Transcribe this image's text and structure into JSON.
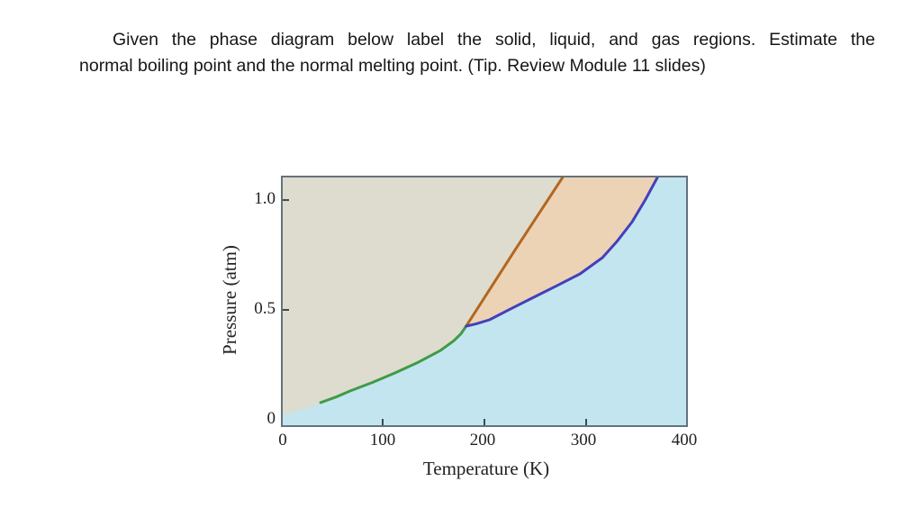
{
  "question": {
    "full_text": "Given the phase diagram below label the solid, liquid, and gas regions. Estimate the normal boiling point and the normal melting point. (Tip. Review Module 11 slides)",
    "lines": [
      "Given the phase diagram below label the solid, liquid, and gas regions. Estimate the",
      "normal boiling point and the normal melting point. (Tip. Review Module 11 slides)"
    ]
  },
  "chart_data": {
    "type": "area",
    "title": "",
    "xlabel": "Temperature (K)",
    "ylabel": "Pressure (atm)",
    "xlim": [
      0,
      400
    ],
    "ylim": [
      -0.033,
      1.111
    ],
    "grid": false,
    "legend": false,
    "x_ticks": [
      0,
      100,
      200,
      300,
      400
    ],
    "x_tick_labels": [
      "0",
      "100",
      "200",
      "300",
      "400"
    ],
    "x_tick_marks": [
      100,
      200,
      300
    ],
    "y_ticks": [
      0,
      0.5,
      1.0
    ],
    "y_tick_labels": [
      "0",
      "0.5",
      "1.0"
    ],
    "y_tick_marks": [
      0.5,
      1.0
    ],
    "border_color": "#64727c",
    "triple_point": {
      "T_K": 182,
      "p_atm": 0.43
    },
    "regions": [
      {
        "name": "solid",
        "color": "#dedcce"
      },
      {
        "name": "liquid",
        "color": "#edd3b5"
      },
      {
        "name": "gas",
        "color": "#c3e5f0"
      }
    ],
    "curves": [
      {
        "name": "sublimation-curve",
        "color": "#3f9b47",
        "points": [
          [
            39,
            0.078
          ],
          [
            55,
            0.105
          ],
          [
            68,
            0.131
          ],
          [
            90,
            0.17
          ],
          [
            112,
            0.213
          ],
          [
            135,
            0.262
          ],
          [
            157,
            0.316
          ],
          [
            170,
            0.36
          ],
          [
            177,
            0.392
          ],
          [
            182,
            0.426
          ]
        ]
      },
      {
        "name": "fusion-curve",
        "color": "#b2671f",
        "points": [
          [
            182,
            0.426
          ],
          [
            230,
            0.772
          ],
          [
            278,
            1.111
          ]
        ]
      },
      {
        "name": "vaporization-curve",
        "color": "#4340bb",
        "points": [
          [
            182,
            0.426
          ],
          [
            192,
            0.437
          ],
          [
            205,
            0.455
          ],
          [
            225,
            0.503
          ],
          [
            250,
            0.561
          ],
          [
            272,
            0.612
          ],
          [
            294,
            0.664
          ],
          [
            316,
            0.738
          ],
          [
            330,
            0.81
          ],
          [
            345,
            0.9
          ],
          [
            358,
            1.0
          ],
          [
            371,
            1.111
          ]
        ]
      }
    ],
    "fade_boundary": [
      [
        0,
        0.033
      ],
      [
        39,
        0.078
      ]
    ]
  }
}
